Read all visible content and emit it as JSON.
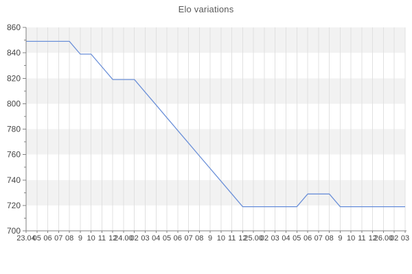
{
  "title": "Elo variations",
  "chart_data": {
    "type": "line",
    "title": "Elo variations",
    "xlabel": "",
    "ylabel": "",
    "x_tick_labels": [
      "23.04",
      "05",
      "06",
      "07",
      "08",
      "9",
      "10",
      "11",
      "12",
      "24.00",
      "02",
      "03",
      "04",
      "05",
      "06",
      "07",
      "08",
      "9",
      "10",
      "11",
      "12",
      "25.00",
      "02",
      "03",
      "04",
      "05",
      "06",
      "07",
      "08",
      "9",
      "10",
      "11",
      "12",
      "26.00",
      "02",
      "03"
    ],
    "values": [
      849,
      849,
      849,
      849,
      849,
      839,
      839,
      829,
      819,
      819,
      819,
      809,
      799,
      789,
      779,
      769,
      759,
      749,
      739,
      729,
      719,
      719,
      719,
      719,
      719,
      719,
      729,
      729,
      729,
      719,
      719,
      719,
      719,
      719,
      719,
      719
    ],
    "ylim": [
      700,
      860
    ],
    "y_major_step": 20,
    "y_minor_step": 10,
    "y_tick_labels": [
      "860",
      "840",
      "820",
      "800",
      "780",
      "760",
      "740",
      "720",
      "700"
    ],
    "legend": "none",
    "grid": "vertical-lines-and-alternating-horizontal-bands",
    "colors": {
      "line": "#6a8fd8",
      "band": "#f2f2f2",
      "band_alt": "#ffffff",
      "gridline": "#e0e0e0",
      "axis": "#808080",
      "labels": "#444444",
      "title": "#595959"
    }
  }
}
